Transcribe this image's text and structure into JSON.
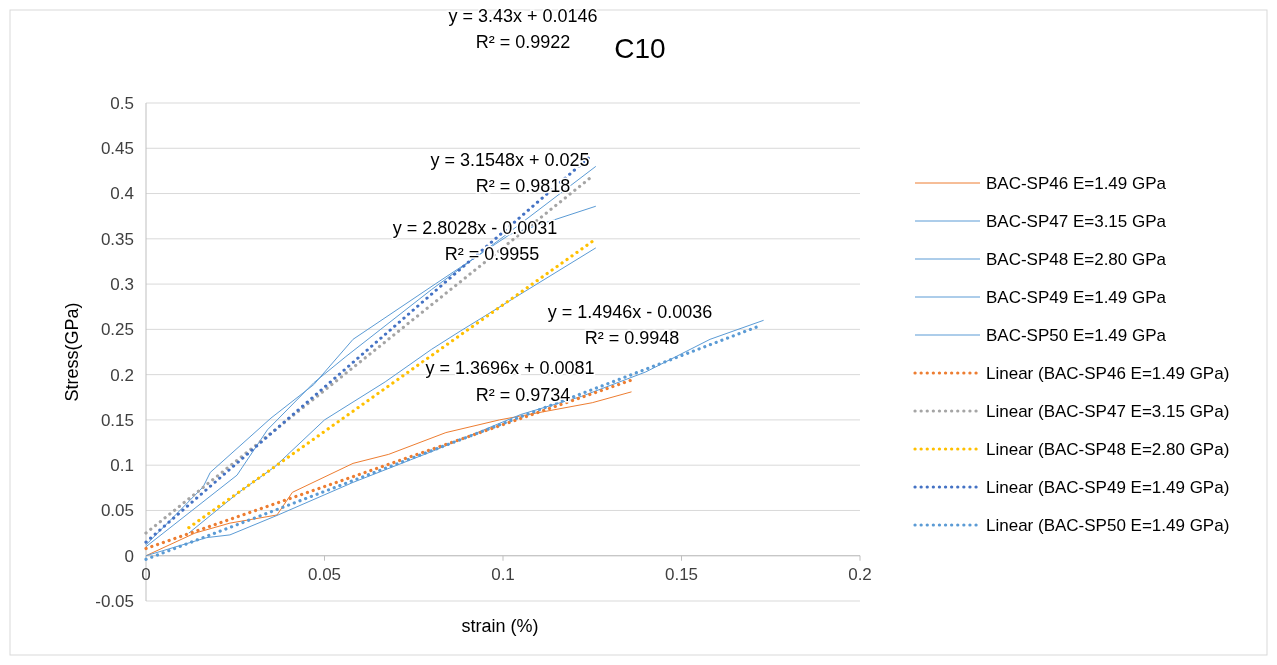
{
  "chart_data": {
    "type": "line",
    "title": "C10",
    "xlabel": "strain (%)",
    "ylabel": "Stress(GPa)",
    "xlim": [
      0,
      0.2
    ],
    "xticks": [
      0,
      0.05,
      0.1,
      0.15,
      0.2
    ],
    "ylim": [
      -0.05,
      0.5
    ],
    "yticks": [
      -0.05,
      0,
      0.05,
      0.1,
      0.15,
      0.2,
      0.25,
      0.3,
      0.35,
      0.4,
      0.45,
      0.5
    ],
    "grid": "y",
    "legend": "right",
    "marker": "none",
    "series": [
      {
        "name": "BAC-SP46 E=1.49 GPa",
        "color": "#ed7d31",
        "line_style": "solid",
        "x": [
          0,
          0.0137,
          0.0235,
          0.0367,
          0.041,
          0.058,
          0.068,
          0.084,
          0.099,
          0.125,
          0.136
        ],
        "values": [
          0,
          0.025,
          0.036,
          0.045,
          0.07,
          0.102,
          0.112,
          0.136,
          0.15,
          0.169,
          0.181
        ]
      },
      {
        "name": "BAC-SP47 E=3.15 GPa",
        "color": "#5b9bd5",
        "line_style": "solid",
        "x": [
          0,
          0.0255,
          0.034,
          0.047,
          0.056,
          0.08,
          0.099,
          0.126
        ],
        "values": [
          0.01,
          0.089,
          0.139,
          0.191,
          0.22,
          0.294,
          0.349,
          0.43
        ]
      },
      {
        "name": "BAC-SP48 E=2.80 GPa",
        "color": "#5b9bd5",
        "line_style": "solid",
        "x": [
          0.012,
          0.026,
          0.036,
          0.05,
          0.067,
          0.08,
          0.088,
          0.126
        ],
        "values": [
          0.025,
          0.07,
          0.098,
          0.15,
          0.192,
          0.228,
          0.248,
          0.34
        ]
      },
      {
        "name": "BAC-SP49 E=1.49 GPa",
        "color": "#5b9bd5",
        "line_style": "solid",
        "x": [
          0,
          0.016,
          0.018,
          0.035,
          0.047,
          0.058,
          0.081,
          0.102,
          0.126
        ],
        "values": [
          0.012,
          0.076,
          0.092,
          0.152,
          0.189,
          0.239,
          0.3,
          0.355,
          0.386
        ]
      },
      {
        "name": "BAC-SP50 E=1.49 GPa",
        "color": "#5b9bd5",
        "line_style": "solid",
        "x": [
          0,
          0.017,
          0.0235,
          0.037,
          0.058,
          0.08,
          0.105,
          0.122,
          0.14,
          0.158,
          0.173
        ],
        "values": [
          0,
          0.02,
          0.023,
          0.045,
          0.081,
          0.115,
          0.156,
          0.176,
          0.203,
          0.239,
          0.26
        ]
      },
      {
        "name": "Linear (BAC-SP46 E=1.49 GPa)",
        "color": "#ed7d31",
        "line_style": "dotted",
        "x": [
          0,
          0.136
        ],
        "values": [
          0.008,
          0.194
        ]
      },
      {
        "name": "Linear (BAC-SP47 E=3.15 GPa)",
        "color": "#a5a5a5",
        "line_style": "dotted",
        "x": [
          0,
          0.125
        ],
        "values": [
          0.025,
          0.419
        ]
      },
      {
        "name": "Linear (BAC-SP48 E=2.80 GPa)",
        "color": "#ffc000",
        "line_style": "dotted",
        "x": [
          0.012,
          0.125
        ],
        "values": [
          0.031,
          0.347
        ]
      },
      {
        "name": "Linear (BAC-SP49 E=1.49 GPa)",
        "color": "#4472c4",
        "line_style": "dotted",
        "x": [
          0,
          0.125
        ],
        "values": [
          0.015,
          0.443
        ]
      },
      {
        "name": "Linear (BAC-SP50 E=1.49 GPa)",
        "color": "#5b9bd5",
        "line_style": "dotted",
        "x": [
          0,
          0.172
        ],
        "values": [
          -0.004,
          0.254
        ]
      }
    ],
    "annotations": [
      "y = 3.43x + 0.0146",
      "R² = 0.9922",
      "y = 3.1548x + 0.025",
      "R² = 0.9818",
      "y = 2.8028x - 0.0031",
      "R² = 0.9955",
      "y = 1.4946x - 0.0036",
      "R² = 0.9948",
      "y = 1.3696x + 0.0081",
      "R² = 0.9734"
    ]
  }
}
